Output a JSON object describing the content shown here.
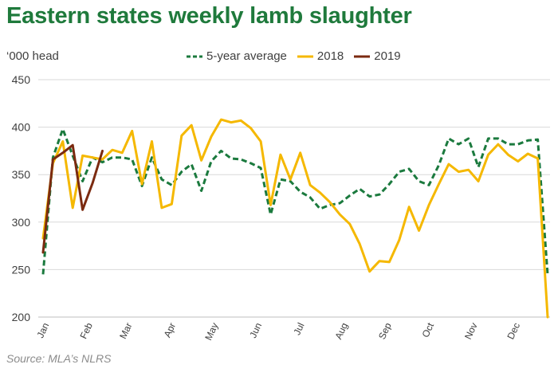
{
  "title": "Eastern states weekly lamb slaughter",
  "source": "Source: MLA’s NLRS",
  "colors": {
    "title": "#1f7a3c",
    "avg": "#1b7a3e",
    "y2018": "#f5b800",
    "y2019": "#7b2a10",
    "grid": "#d9d9d9"
  },
  "chart_data": {
    "type": "line",
    "ylabel": "‘000 head",
    "ylim": [
      200,
      450
    ],
    "yticks": [
      200,
      250,
      300,
      350,
      400,
      450
    ],
    "x_range": [
      1,
      52
    ],
    "x_ticks": [
      {
        "label": "Jan",
        "week": 1
      },
      {
        "label": "Feb",
        "week": 5.4
      },
      {
        "label": "Mar",
        "week": 9.4
      },
      {
        "label": "Apr",
        "week": 13.8
      },
      {
        "label": "May",
        "week": 18.1
      },
      {
        "label": "Jun",
        "week": 22.5
      },
      {
        "label": "Jul",
        "week": 26.8
      },
      {
        "label": "Aug",
        "week": 31.2
      },
      {
        "label": "Sep",
        "week": 35.6
      },
      {
        "label": "Oct",
        "week": 39.9
      },
      {
        "label": "Nov",
        "week": 44.3
      },
      {
        "label": "Dec",
        "week": 48.6
      }
    ],
    "grid": true,
    "legend_position": "top",
    "series": [
      {
        "name": "5-year average",
        "style": "dashed",
        "color": "#1b7a3e",
        "weeks": [
          1,
          2,
          3,
          4,
          5,
          6,
          7,
          8,
          9,
          10,
          11,
          12,
          13,
          14,
          15,
          16,
          17,
          18,
          19,
          20,
          21,
          22,
          23,
          24,
          25,
          26,
          27,
          28,
          29,
          30,
          31,
          32,
          33,
          34,
          35,
          36,
          37,
          38,
          39,
          40,
          41,
          42,
          43,
          44,
          45,
          46,
          47,
          48,
          49,
          50,
          51,
          52
        ],
        "values": [
          245,
          368,
          398,
          370,
          343,
          368,
          363,
          368,
          368,
          366,
          338,
          368,
          345,
          339,
          353,
          361,
          333,
          364,
          375,
          367,
          366,
          362,
          357,
          308,
          345,
          343,
          332,
          326,
          314,
          318,
          320,
          328,
          335,
          327,
          329,
          340,
          353,
          356,
          343,
          339,
          360,
          388,
          382,
          388,
          358,
          388,
          388,
          382,
          382,
          386,
          387,
          245
        ]
      },
      {
        "name": "2018",
        "style": "solid",
        "color": "#f5b800",
        "weeks": [
          1,
          2,
          3,
          4,
          5,
          6,
          7,
          8,
          9,
          10,
          11,
          12,
          13,
          14,
          15,
          16,
          17,
          18,
          19,
          20,
          21,
          22,
          23,
          24,
          25,
          26,
          27,
          28,
          29,
          30,
          31,
          32,
          33,
          34,
          35,
          36,
          37,
          38,
          39,
          40,
          41,
          42,
          43,
          44,
          45,
          46,
          47,
          48,
          49,
          50,
          51,
          52
        ],
        "values": [
          283,
          362,
          385,
          315,
          370,
          368,
          366,
          376,
          373,
          396,
          340,
          385,
          315,
          319,
          391,
          402,
          365,
          390,
          408,
          405,
          407,
          399,
          385,
          318,
          371,
          345,
          373,
          339,
          331,
          321,
          308,
          298,
          277,
          248,
          259,
          258,
          281,
          316,
          291,
          318,
          340,
          361,
          353,
          355,
          343,
          371,
          382,
          371,
          364,
          372,
          367,
          200
        ]
      },
      {
        "name": "2019",
        "style": "solid",
        "color": "#7b2a10",
        "weeks": [
          1,
          2,
          3,
          4,
          5,
          6,
          7
        ],
        "values": [
          268,
          366,
          373,
          381,
          313,
          341,
          375
        ]
      }
    ]
  }
}
